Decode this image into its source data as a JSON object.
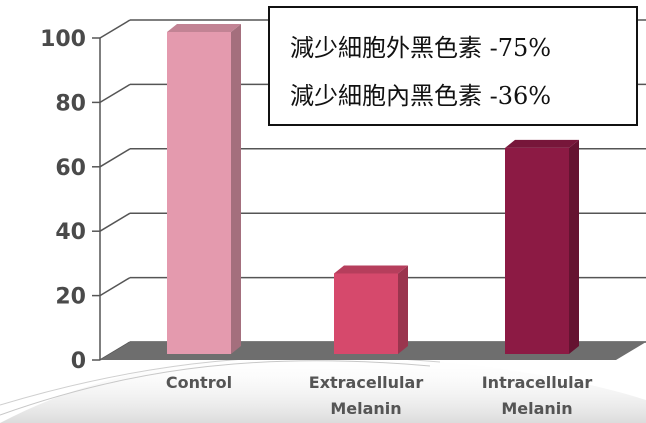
{
  "chart_data": {
    "type": "bar",
    "categories": [
      "Control",
      "Extracellular Melanin",
      "Intracellular Melanin"
    ],
    "category_lines": [
      [
        "Control"
      ],
      [
        "Extracellular",
        "Melanin"
      ],
      [
        "Intracellular",
        "Melanin"
      ]
    ],
    "values": [
      100,
      25,
      64
    ],
    "ylim": [
      0,
      100
    ],
    "yticks": [
      0,
      20,
      40,
      60,
      80,
      100
    ],
    "grid": true,
    "bar_colors": [
      "#e49aae",
      "#d6496c",
      "#8c1a44"
    ],
    "title": "",
    "xlabel": "",
    "ylabel": ""
  },
  "legend": {
    "lines": [
      "減少細胞外黑色素  -75%",
      "減少細胞內黑色素  -36%"
    ]
  }
}
